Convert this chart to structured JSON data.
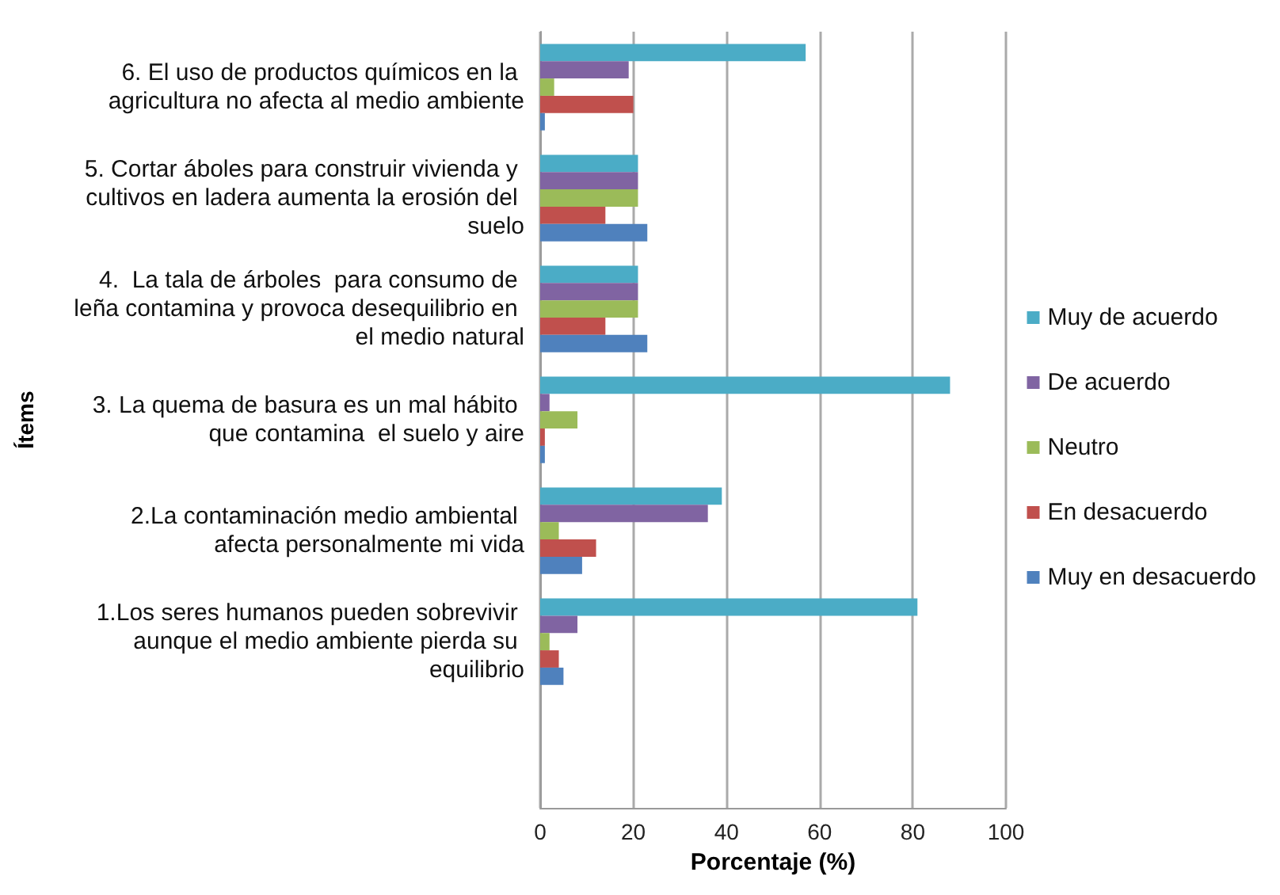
{
  "chart_data": {
    "type": "bar",
    "orientation": "horizontal",
    "xlabel": "Porcentaje (%)",
    "ylabel": "Ítems",
    "categories": [
      "6. El uso de productos químicos en la agricultura no afecta al medio ambiente",
      "5. Cortar áboles para construir vivienda y cultivos en ladera aumenta la erosión del suelo",
      "4.  La tala de árboles  para consumo de leña contamina y provoca desequilibrio en el medio natural",
      "3. La quema de basura es un mal hábito que contamina  el suelo y aire",
      "2.La contaminación medio ambiental afecta personalmente mi vida",
      "1.Los seres humanos pueden sobrevivir aunque el medio ambiente pierda su equilibrio",
      null
    ],
    "series": [
      {
        "name": "Muy de acuerdo",
        "color": "#4bacc6",
        "values": [
          57,
          21,
          21,
          88,
          39,
          81,
          null
        ]
      },
      {
        "name": "De acuerdo",
        "color": "#8064a2",
        "values": [
          19,
          21,
          21,
          2,
          36,
          8,
          null
        ]
      },
      {
        "name": "Neutro",
        "color": "#9bbb59",
        "values": [
          3,
          21,
          21,
          8,
          4,
          2,
          null
        ]
      },
      {
        "name": "En desacuerdo",
        "color": "#c0504d",
        "values": [
          20,
          14,
          14,
          1,
          12,
          4,
          null
        ]
      },
      {
        "name": "Muy en desacuerdo",
        "color": "#4f81bd",
        "values": [
          1,
          23,
          23,
          1,
          9,
          5,
          null
        ]
      }
    ],
    "xlim": [
      0,
      100
    ],
    "xticks": [
      0,
      20,
      40,
      60,
      80,
      100
    ],
    "grid": "x",
    "legend": "right"
  }
}
